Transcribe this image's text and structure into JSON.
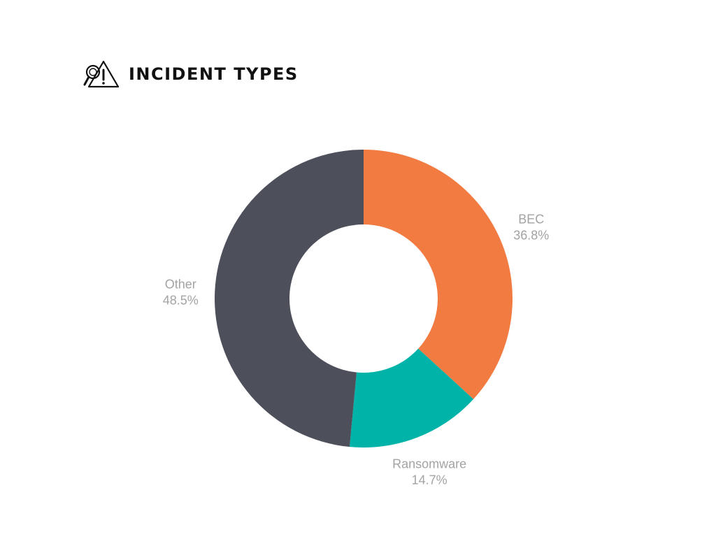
{
  "title": "INCIDENT TYPES",
  "header_icon": "incident-search-warning-icon",
  "chart_data": {
    "type": "pie",
    "donut": true,
    "title": "INCIDENT TYPES",
    "slices": [
      {
        "label": "BEC",
        "value": 36.8,
        "value_label": "36.8%",
        "color": "#f27b42"
      },
      {
        "label": "Ransomware",
        "value": 14.7,
        "value_label": "14.7%",
        "color": "#00b3a8"
      },
      {
        "label": "Other",
        "value": 48.5,
        "value_label": "48.5%",
        "color": "#4d4f5b"
      }
    ],
    "start_angle": "12 o'clock",
    "direction": "clockwise",
    "legend": "none",
    "label_position": "outside"
  }
}
